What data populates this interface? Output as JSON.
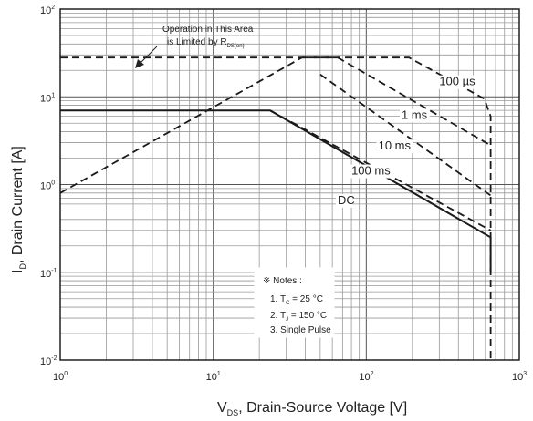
{
  "chart_data": {
    "type": "line",
    "scale": {
      "x": "log",
      "y": "log"
    },
    "xlim": [
      1,
      1000
    ],
    "ylim": [
      0.01,
      100
    ],
    "grid": true,
    "xlabel": {
      "main": "V",
      "sub": "DS",
      "rest": ", Drain-Source Voltage [V]"
    },
    "ylabel": {
      "main": "I",
      "sub": "D",
      "rest": ", Drain Current [A]"
    },
    "x_ticks": [
      {
        "value": 1,
        "base": "10",
        "exp": "0"
      },
      {
        "value": 10,
        "base": "10",
        "exp": "1"
      },
      {
        "value": 100,
        "base": "10",
        "exp": "2"
      },
      {
        "value": 1000,
        "base": "10",
        "exp": "3"
      }
    ],
    "y_ticks": [
      {
        "value": 100,
        "base": "10",
        "exp": "2"
      },
      {
        "value": 10,
        "base": "10",
        "exp": "1"
      },
      {
        "value": 1,
        "base": "10",
        "exp": "0"
      },
      {
        "value": 0.1,
        "base": "10",
        "exp": "-1"
      },
      {
        "value": 0.01,
        "base": "10",
        "exp": "-2"
      }
    ],
    "series": [
      {
        "name": "Rds(on) limit",
        "style": "dashed",
        "x": [
          1,
          38
        ],
        "y": [
          0.8,
          28
        ]
      },
      {
        "name": "100 µs",
        "style": "dashed",
        "x": [
          1,
          38,
          190,
          590,
          650,
          650
        ],
        "y": [
          28,
          28,
          28,
          9.5,
          6.0,
          0.01
        ]
      },
      {
        "name": "1 ms",
        "style": "dashed",
        "x": [
          38,
          65,
          650
        ],
        "y": [
          28,
          28,
          2.8
        ]
      },
      {
        "name": "10 ms",
        "style": "dashed",
        "x": [
          50,
          650
        ],
        "y": [
          18,
          0.75
        ]
      },
      {
        "name": "100 ms",
        "style": "dashed",
        "x": [
          23.5,
          650
        ],
        "y": [
          7,
          0.3
        ]
      },
      {
        "name": "DC",
        "style": "solid",
        "x": [
          1,
          23.5,
          650,
          650
        ],
        "y": [
          7,
          7,
          0.25,
          0.1
        ]
      }
    ],
    "series_labels": [
      {
        "text": "100 µs",
        "x": 300,
        "y": 13.5
      },
      {
        "text": "1 ms",
        "x": 170,
        "y": 5.6
      },
      {
        "text": "10 ms",
        "x": 120,
        "y": 2.5
      },
      {
        "text": "100 ms",
        "x": 80,
        "y": 1.3
      },
      {
        "text": "DC",
        "x": 65,
        "y": 0.6
      }
    ],
    "annotation": {
      "line1": "Operation in This Area",
      "line2": "is Limited by R",
      "line2_sub": "DS(on)"
    },
    "notes": {
      "title": "※ Notes :",
      "items": [
        {
          "prefix": "1. T",
          "sub": "C",
          "suffix": " = 25 °C"
        },
        {
          "prefix": "2. T",
          "sub": "J",
          "suffix": " = 150 °C"
        },
        {
          "prefix": "3. Single Pulse",
          "sub": "",
          "suffix": ""
        }
      ]
    }
  }
}
